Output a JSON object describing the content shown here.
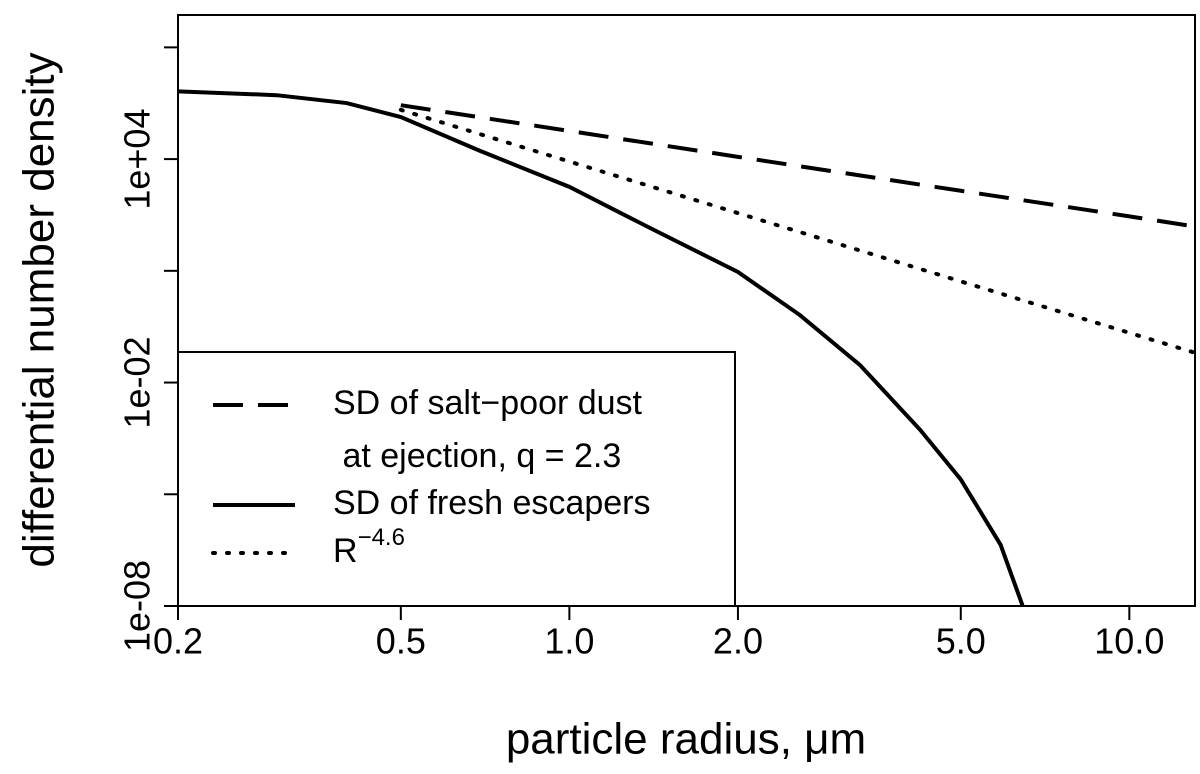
{
  "chart_data": {
    "type": "line",
    "xlabel": "particle radius, μm",
    "ylabel": "differential number density",
    "xscale": "log",
    "yscale": "log",
    "xlim": [
      0.2,
      13.1
    ],
    "ylim": [
      1e-08,
      74000000
    ],
    "xticks": [
      0.2,
      0.5,
      {
        "value": 1,
        "label": "1.0"
      },
      {
        "value": 2,
        "label": "2.0"
      },
      {
        "value": 5,
        "label": "5.0"
      },
      {
        "value": 10,
        "label": "10.0"
      }
    ],
    "yticks": [
      {
        "value": 1e-08,
        "label": "1e-08"
      },
      {
        "value": 1e-05,
        "label": null
      },
      {
        "value": 0.01,
        "label": "1e-02"
      },
      {
        "value": 10,
        "label": null
      },
      {
        "value": 10000,
        "label": "1e+04"
      },
      {
        "value": 10000000,
        "label": null
      }
    ],
    "legend": "bottom-left",
    "series": [
      {
        "name": "SD of salt−poor dust\n at ejection, q = 2.3",
        "style": "dashed",
        "color": "#000000",
        "x": [
          0.5,
          1,
          2,
          5,
          10,
          13.1
        ],
        "values": [
          280000,
          57000,
          11500,
          1410,
          290,
          155
        ]
      },
      {
        "name": "SD of fresh escapers",
        "style": "solid",
        "color": "#000000",
        "x": [
          0.2,
          0.3,
          0.4,
          0.5,
          0.69,
          1.0,
          1.395,
          2.0,
          2.58,
          3.3,
          4.23,
          5.0,
          5.89,
          6.45
        ],
        "values": [
          660000,
          520000,
          320000,
          135000,
          17000,
          1800,
          140,
          9.3,
          0.65,
          0.03,
          0.00054,
          2.5e-05,
          4.4e-07,
          1e-08
        ]
      },
      {
        "name": "R",
        "name_superscript": "−4.6",
        "style": "dotted",
        "color": "#000000",
        "x": [
          0.5,
          1,
          2,
          5,
          10,
          13.1
        ],
        "values": [
          210000,
          8600,
          355,
          5.2,
          0.216,
          0.063
        ]
      }
    ]
  }
}
